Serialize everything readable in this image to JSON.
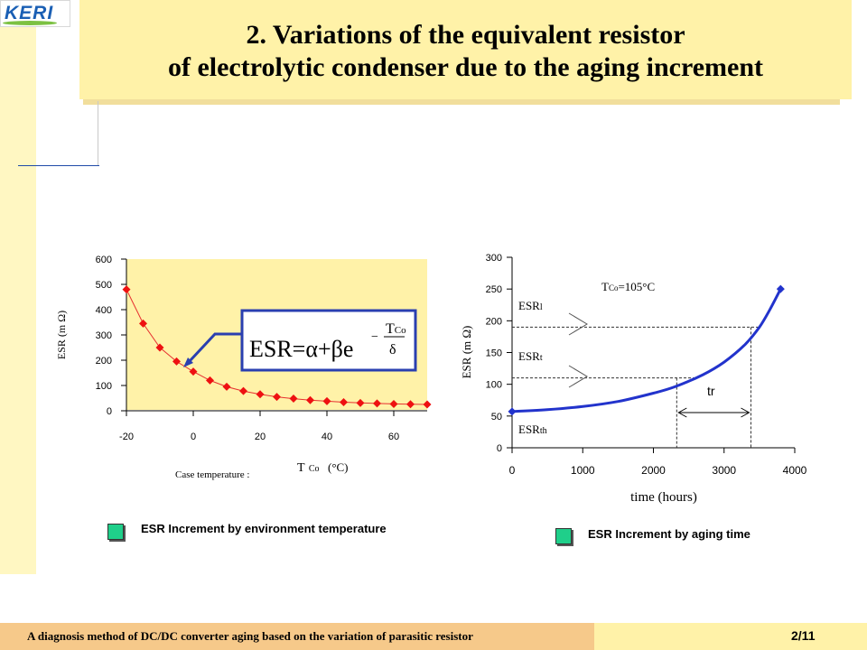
{
  "logo": {
    "text": "KERI"
  },
  "title": {
    "line1": "2. Variations of the equivalent resistor",
    "line2": "of electrolytic condenser due to the aging increment"
  },
  "chart_left": {
    "ylabel": "ESR (m  Ω)",
    "xlabel_prefix": "Case temperature :",
    "xlabel_symbol": "T",
    "xlabel_sub": "Co",
    "xlabel_unit": "(°C)",
    "formula": {
      "lhs": "ESR=",
      "alpha": "α",
      "plus": "+",
      "beta": "β",
      "e": "e",
      "minus": "−",
      "numer_T": "T",
      "numer_sub": "Co",
      "denom": "δ"
    },
    "legend": "ESR Increment by environment temperature"
  },
  "chart_right": {
    "ylabel": "ESR  (m  Ω)",
    "xlabel": "time (hours)",
    "condition_T": "T",
    "condition_sub": "Co",
    "condition_value": "=105°C",
    "label_esr_l": "ESR",
    "label_esr_l_sub": "l",
    "label_esr_t": "ESR",
    "label_esr_t_sub": "t",
    "label_esr_th": "ESR",
    "label_esr_th_sub": "th",
    "label_tr": "tr",
    "legend": "ESR Increment by aging time"
  },
  "chart_data": [
    {
      "type": "line",
      "ylim": [
        0,
        600
      ],
      "xlim": [
        -20,
        70
      ],
      "xticks": [
        "-20",
        "0",
        "20",
        "40",
        "60"
      ],
      "yticks": [
        "0",
        "100",
        "200",
        "300",
        "400",
        "500",
        "600"
      ],
      "series": [
        {
          "x": [
            -20,
            -15,
            -10,
            -5,
            0,
            5,
            10,
            15,
            20,
            25,
            30,
            35,
            40,
            45,
            50,
            55,
            60,
            65,
            70
          ],
          "values": [
            480,
            345,
            250,
            195,
            155,
            120,
            95,
            78,
            65,
            55,
            48,
            42,
            38,
            34,
            31,
            29,
            27,
            26,
            25
          ]
        }
      ],
      "colors": {
        "line": "#e63030",
        "marker": "#ee1111",
        "plot_bg": "#fff2a8"
      }
    },
    {
      "type": "line",
      "ylim": [
        0,
        300
      ],
      "xlim": [
        0,
        4000
      ],
      "xticks": [
        "0",
        "1000",
        "2000",
        "3000",
        "4000"
      ],
      "yticks": [
        "0",
        "50",
        "100",
        "150",
        "200",
        "250",
        "300"
      ],
      "series": [
        {
          "x": [
            0,
            500,
            1000,
            1500,
            2000,
            2300,
            2700,
            3000,
            3300,
            3500,
            3650,
            3800
          ],
          "values": [
            57,
            60,
            65,
            73,
            86,
            96,
            115,
            135,
            163,
            190,
            218,
            250
          ]
        }
      ],
      "reference_levels": {
        "ESR_th": 57,
        "ESR_t": 110,
        "ESR_l": 190
      },
      "tr_interval_hours": [
        2330,
        3380
      ],
      "colors": {
        "line": "#2233cc",
        "plot_bg": "#ffffff"
      }
    }
  ]
}
